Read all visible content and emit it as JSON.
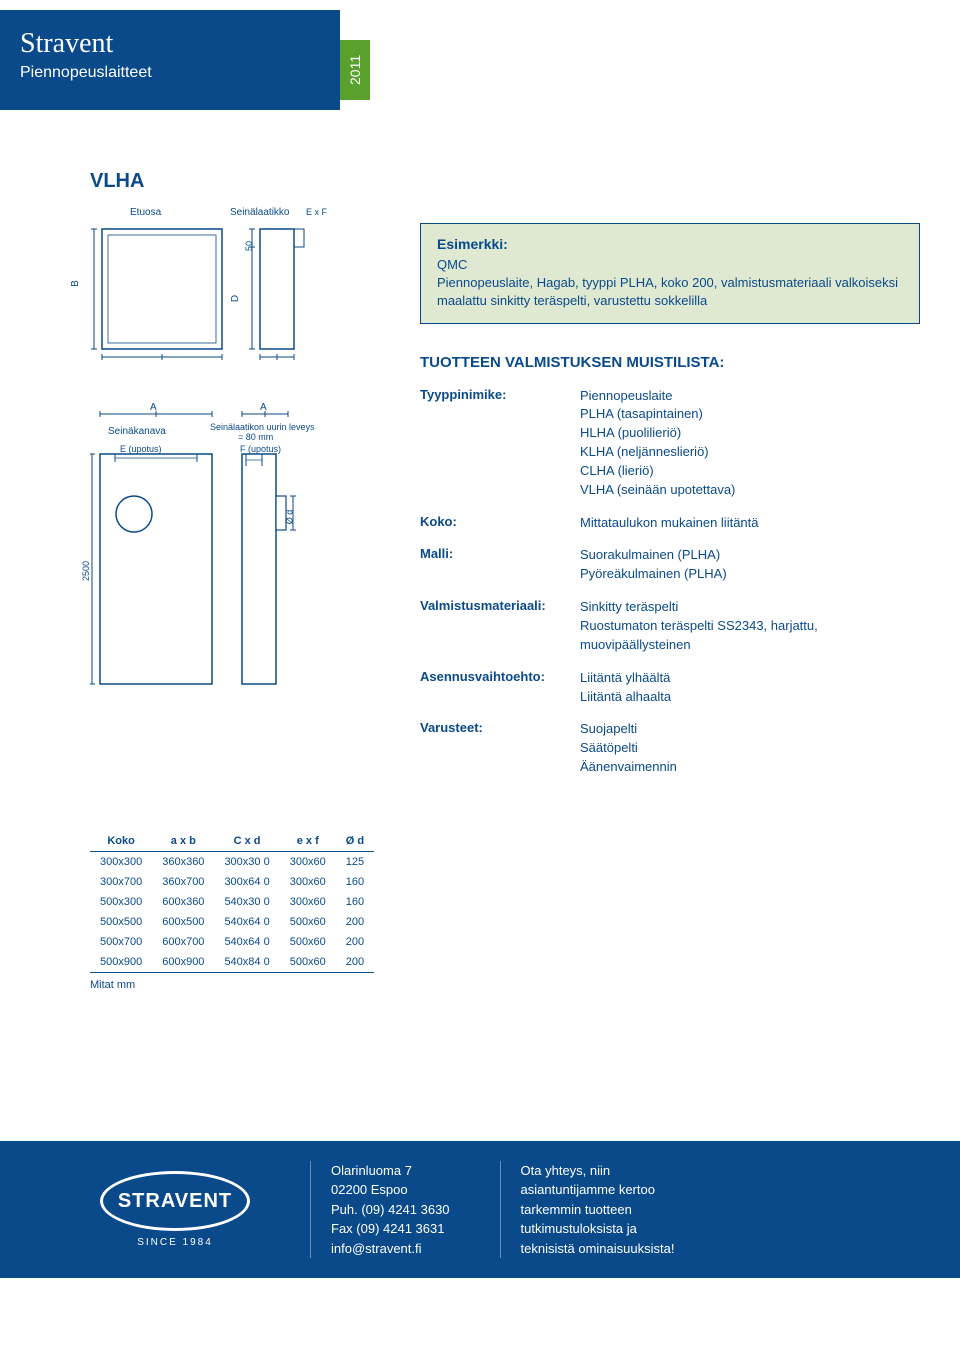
{
  "header": {
    "brand": "Stravent",
    "subtitle": "Piennopeuslaitteet",
    "year": "2011"
  },
  "product_code": "VLHA",
  "diagrams": {
    "etuosa_label": "Etuosa",
    "seinalaat_label": "Seinälaatikko",
    "exf": "E x F",
    "fifty": "50",
    "B": "B",
    "D": "D",
    "A": "A",
    "seinakanava": "Seinäkanava",
    "e_upotus": "E (upotus)",
    "f_upotus": "F (upotus)",
    "uurin": "Seinälaatikon uurin leveys",
    "uurin_val": "= 80 mm",
    "od": "Ø d",
    "h2500": "2500"
  },
  "example": {
    "title": "Esimerkki:",
    "line1": "QMC",
    "line2": "Piennopeuslaite, Hagab, tyyppi PLHA, koko 200, valmistusmateriaali valkoiseksi maalattu sinkitty teräspelti, varustettu sokkelilla"
  },
  "checklist": {
    "title": "TUOTTEEN VALMISTUKSEN MUISTILISTA:",
    "rows": [
      {
        "key": "Tyyppinimike:",
        "val": "Piennopeuslaite\nPLHA (tasapintainen)\nHLHA (puolilieriö)\nKLHA (neljänneslieriö)\nCLHA (lieriö)\nVLHA (seinään upotettava)"
      },
      {
        "key": "Koko:",
        "val": "Mittataulukon mukainen liitäntä"
      },
      {
        "key": "Malli:",
        "val": "Suorakulmainen (PLHA)\nPyöreäkulmainen (PLHA)"
      },
      {
        "key": "Valmistusmateriaali:",
        "val": "Sinkitty teräspelti\nRuostumaton teräspelti SS2343, harjattu, muovipäällysteinen"
      },
      {
        "key": "Asennusvaihtoehto:",
        "val": "Liitäntä ylhäältä\nLiitäntä alhaalta"
      },
      {
        "key": "Varusteet:",
        "val": "Suojapelti\nSäätöpelti\nÄänenvaimennin"
      }
    ]
  },
  "table": {
    "headers": [
      "Koko",
      "a  x  b",
      "C x  d",
      "e  x  f",
      "Ø d"
    ],
    "rows": [
      [
        "300x300",
        "360x360",
        "300x30 0",
        "300x60",
        "125"
      ],
      [
        "300x700",
        "360x700",
        "300x64 0",
        "300x60",
        "160"
      ],
      [
        "500x300",
        "600x360",
        "540x30 0",
        "300x60",
        "160"
      ],
      [
        "500x500",
        "600x500",
        "540x64 0",
        "500x60",
        "200"
      ],
      [
        "500x700",
        "600x700",
        "540x64 0",
        "500x60",
        "200"
      ],
      [
        "500x900",
        "600x900",
        "540x84 0",
        "500x60",
        "200"
      ]
    ],
    "footer": "Mitat mm"
  },
  "footer": {
    "logo_text": "STRAVENT",
    "since": "SINCE 1984",
    "col1": "Olarinluoma 7\n02200 Espoo\nPuh. (09) 4241 3630\nFax (09) 4241 3631\ninfo@stravent.fi",
    "col2": "Ota yhteys, niin\nasiantuntijamme kertoo\ntarkemmin tuotteen\ntutkimustuloksista ja\nteknisistä ominaisuuksista!"
  }
}
